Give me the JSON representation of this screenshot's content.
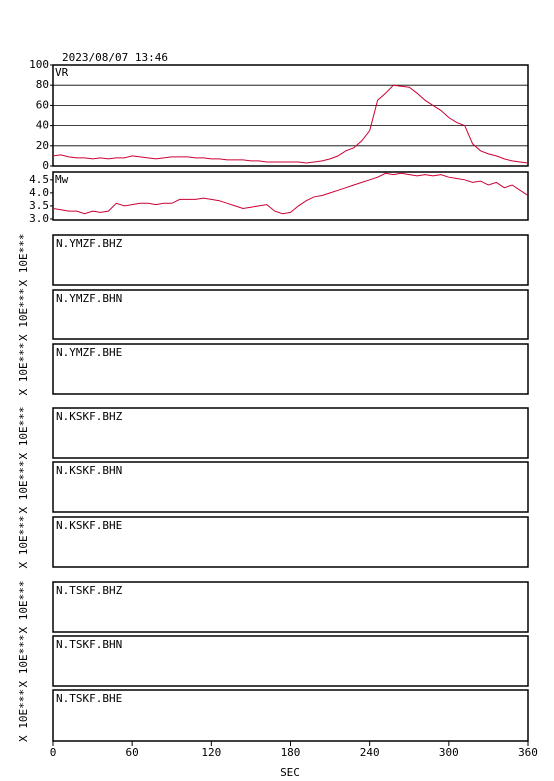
{
  "title": "2023/08/07 13:46",
  "x_axis": {
    "xlim": [
      0,
      360
    ],
    "xticks": [
      0,
      60,
      120,
      180,
      240,
      300,
      360
    ],
    "xlabel": "SEC"
  },
  "chart_data": [
    {
      "type": "line",
      "label": "VR",
      "x": [
        0,
        6,
        12,
        18,
        24,
        30,
        36,
        42,
        48,
        54,
        60,
        66,
        72,
        78,
        84,
        90,
        96,
        102,
        108,
        114,
        120,
        126,
        132,
        138,
        144,
        150,
        156,
        162,
        168,
        174,
        180,
        186,
        192,
        198,
        204,
        210,
        216,
        222,
        228,
        234,
        240,
        246,
        252,
        258,
        264,
        270,
        276,
        282,
        288,
        294,
        300,
        306,
        312,
        318,
        324,
        330,
        336,
        342,
        348,
        354,
        360
      ],
      "series": [
        {
          "color": "#cc0033",
          "values": [
            10,
            11,
            9,
            8,
            8,
            7,
            8,
            7,
            8,
            8,
            10,
            9,
            8,
            7,
            8,
            9,
            9,
            9,
            8,
            8,
            7,
            7,
            6,
            6,
            6,
            5,
            5,
            4,
            4,
            4,
            4,
            4,
            3,
            4,
            5,
            7,
            10,
            15,
            18,
            25,
            35,
            65,
            72,
            80,
            79,
            78,
            72,
            65,
            60,
            55,
            48,
            43,
            40,
            22,
            15,
            12,
            10,
            7,
            5,
            4,
            3
          ]
        }
      ],
      "ylim": [
        0,
        100
      ],
      "yticks": [
        0,
        20,
        40,
        60,
        80,
        100
      ],
      "grid": true
    },
    {
      "type": "line",
      "label": "Mw",
      "x": [
        0,
        6,
        12,
        18,
        24,
        30,
        36,
        42,
        48,
        54,
        60,
        66,
        72,
        78,
        84,
        90,
        96,
        102,
        108,
        114,
        120,
        126,
        132,
        138,
        144,
        150,
        156,
        162,
        168,
        174,
        180,
        186,
        192,
        198,
        204,
        210,
        216,
        222,
        228,
        234,
        240,
        246,
        252,
        258,
        264,
        270,
        276,
        282,
        288,
        294,
        300,
        306,
        312,
        318,
        324,
        330,
        336,
        342,
        348,
        354,
        360
      ],
      "series": [
        {
          "color": "#cc0033",
          "values": [
            3.4,
            3.35,
            3.3,
            3.3,
            3.2,
            3.3,
            3.25,
            3.3,
            3.6,
            3.5,
            3.55,
            3.6,
            3.6,
            3.55,
            3.6,
            3.6,
            3.75,
            3.75,
            3.75,
            3.8,
            3.75,
            3.7,
            3.6,
            3.5,
            3.4,
            3.45,
            3.5,
            3.55,
            3.3,
            3.2,
            3.25,
            3.5,
            3.7,
            3.85,
            3.9,
            4.0,
            4.1,
            4.2,
            4.3,
            4.4,
            4.5,
            4.6,
            4.75,
            4.7,
            4.75,
            4.7,
            4.65,
            4.7,
            4.65,
            4.7,
            4.6,
            4.55,
            4.5,
            4.4,
            4.45,
            4.3,
            4.4,
            4.2,
            4.3,
            4.1,
            3.9
          ]
        }
      ],
      "ylim": [
        2.96,
        4.8
      ],
      "yticks": [
        {
          "value": 3,
          "label": "3.0"
        },
        3.5,
        {
          "value": 4,
          "label": "4.0"
        },
        4.5
      ],
      "grid": false
    },
    {
      "type": "trace",
      "label": "N.YMZF.BHZ",
      "ylabel": "X 10E***"
    },
    {
      "type": "trace",
      "label": "N.YMZF.BHN",
      "ylabel": "X 10E***"
    },
    {
      "type": "trace",
      "label": "N.YMZF.BHE",
      "ylabel": "X 10E***"
    },
    {
      "type": "trace",
      "label": "N.KSKF.BHZ",
      "ylabel": "X 10E***"
    },
    {
      "type": "trace",
      "label": "N.KSKF.BHN",
      "ylabel": "X 10E***"
    },
    {
      "type": "trace",
      "label": "N.KSKF.BHE",
      "ylabel": "X 10E***"
    },
    {
      "type": "trace",
      "label": "N.TSKF.BHZ",
      "ylabel": "X 10E***"
    },
    {
      "type": "trace",
      "label": "N.TSKF.BHN",
      "ylabel": "X 10E***"
    },
    {
      "type": "trace",
      "label": "N.TSKF.BHE",
      "ylabel": "X 10E***"
    }
  ]
}
